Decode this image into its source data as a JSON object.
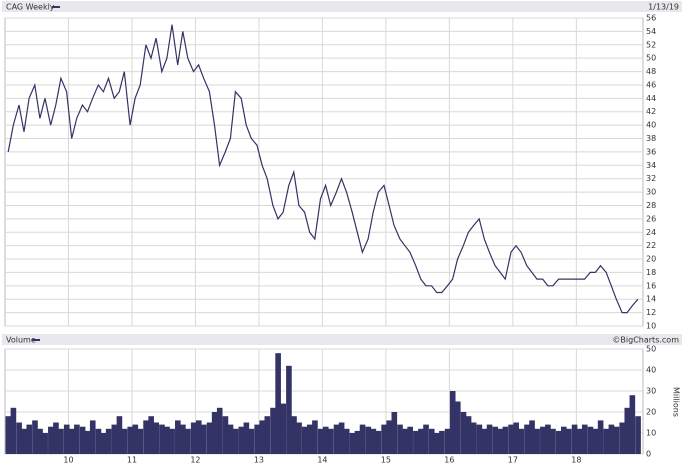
{
  "chart_data": [
    {
      "type": "line",
      "title": "CAG Weekly",
      "date": "1/13/19",
      "color": "#333366",
      "x": [
        9.05,
        9.13,
        9.22,
        9.3,
        9.38,
        9.47,
        9.55,
        9.63,
        9.72,
        9.8,
        9.88,
        9.97,
        10.05,
        10.13,
        10.22,
        10.3,
        10.38,
        10.47,
        10.55,
        10.63,
        10.72,
        10.8,
        10.88,
        10.97,
        11.05,
        11.13,
        11.22,
        11.3,
        11.38,
        11.47,
        11.55,
        11.63,
        11.72,
        11.8,
        11.88,
        11.97,
        12.05,
        12.13,
        12.22,
        12.3,
        12.38,
        12.47,
        12.55,
        12.63,
        12.72,
        12.8,
        12.88,
        12.97,
        13.05,
        13.13,
        13.22,
        13.3,
        13.38,
        13.47,
        13.55,
        13.63,
        13.72,
        13.8,
        13.88,
        13.97,
        14.05,
        14.13,
        14.22,
        14.3,
        14.38,
        14.47,
        14.55,
        14.63,
        14.72,
        14.8,
        14.88,
        14.97,
        15.05,
        15.13,
        15.22,
        15.3,
        15.38,
        15.47,
        15.55,
        15.63,
        15.72,
        15.8,
        15.88,
        15.97,
        16.05,
        16.13,
        16.22,
        16.3,
        16.38,
        16.47,
        16.55,
        16.63,
        16.72,
        16.8,
        16.88,
        16.97,
        17.05,
        17.13,
        17.22,
        17.3,
        17.38,
        17.47,
        17.55,
        17.63,
        17.72,
        17.8,
        17.88,
        17.97,
        18.05,
        18.13,
        18.22,
        18.3,
        18.38,
        18.47,
        18.55,
        18.63,
        18.72,
        18.8,
        18.88,
        18.97
      ],
      "values": [
        36,
        40,
        43,
        39,
        44,
        46,
        41,
        44,
        40,
        43,
        47,
        45,
        38,
        41,
        43,
        42,
        44,
        46,
        45,
        47,
        44,
        45,
        48,
        40,
        44,
        46,
        52,
        50,
        53,
        48,
        50,
        55,
        49,
        54,
        50,
        48,
        49,
        47,
        45,
        40,
        34,
        36,
        38,
        45,
        44,
        40,
        38,
        37,
        34,
        32,
        28,
        26,
        27,
        31,
        33,
        28,
        27,
        24,
        23,
        29,
        31,
        28,
        30,
        32,
        30,
        27,
        24,
        21,
        23,
        27,
        30,
        31,
        28,
        25,
        23,
        22,
        21,
        19,
        17,
        16,
        16,
        15,
        15,
        16,
        17,
        20,
        22,
        24,
        25,
        26,
        23,
        21,
        19,
        18,
        17,
        21,
        22,
        21,
        19,
        18,
        17,
        17,
        16,
        16,
        17,
        17,
        17,
        17,
        17,
        17,
        18,
        18,
        19,
        18,
        16,
        14,
        12,
        12,
        13,
        14
      ],
      "xlim": [
        9.0,
        19.05
      ],
      "xticks": [
        10,
        11,
        12,
        13,
        14,
        15,
        16,
        17,
        18
      ],
      "ylim": [
        10,
        56
      ],
      "yticks": [
        10,
        12,
        14,
        16,
        18,
        20,
        22,
        24,
        26,
        28,
        30,
        32,
        34,
        36,
        38,
        40,
        42,
        44,
        46,
        48,
        50,
        52,
        54,
        56
      ],
      "grid": true
    },
    {
      "type": "bar",
      "title": "Volume",
      "source": "©BigCharts.com",
      "y_label": "Millions",
      "color": "#333366",
      "x": [
        9.05,
        9.13,
        9.22,
        9.3,
        9.38,
        9.47,
        9.55,
        9.63,
        9.72,
        9.8,
        9.88,
        9.97,
        10.05,
        10.13,
        10.22,
        10.3,
        10.38,
        10.47,
        10.55,
        10.63,
        10.72,
        10.8,
        10.88,
        10.97,
        11.05,
        11.13,
        11.22,
        11.3,
        11.38,
        11.47,
        11.55,
        11.63,
        11.72,
        11.8,
        11.88,
        11.97,
        12.05,
        12.13,
        12.22,
        12.3,
        12.38,
        12.47,
        12.55,
        12.63,
        12.72,
        12.8,
        12.88,
        12.97,
        13.05,
        13.13,
        13.22,
        13.3,
        13.38,
        13.47,
        13.55,
        13.63,
        13.72,
        13.8,
        13.88,
        13.97,
        14.05,
        14.13,
        14.22,
        14.3,
        14.38,
        14.47,
        14.55,
        14.63,
        14.72,
        14.8,
        14.88,
        14.97,
        15.05,
        15.13,
        15.22,
        15.3,
        15.38,
        15.47,
        15.55,
        15.63,
        15.72,
        15.8,
        15.88,
        15.97,
        16.05,
        16.13,
        16.22,
        16.3,
        16.38,
        16.47,
        16.55,
        16.63,
        16.72,
        16.8,
        16.88,
        16.97,
        17.05,
        17.13,
        17.22,
        17.3,
        17.38,
        17.47,
        17.55,
        17.63,
        17.72,
        17.8,
        17.88,
        17.97,
        18.05,
        18.13,
        18.22,
        18.3,
        18.38,
        18.47,
        18.55,
        18.63,
        18.72,
        18.8,
        18.88,
        18.97
      ],
      "values": [
        18,
        22,
        15,
        12,
        14,
        16,
        12,
        10,
        13,
        15,
        12,
        14,
        12,
        14,
        13,
        11,
        16,
        12,
        10,
        12,
        14,
        18,
        12,
        13,
        14,
        12,
        16,
        18,
        15,
        14,
        13,
        12,
        16,
        14,
        12,
        15,
        16,
        14,
        15,
        20,
        22,
        18,
        14,
        12,
        13,
        15,
        12,
        14,
        16,
        18,
        22,
        48,
        24,
        42,
        18,
        15,
        13,
        14,
        16,
        12,
        13,
        12,
        14,
        15,
        12,
        10,
        11,
        14,
        13,
        12,
        11,
        14,
        16,
        20,
        14,
        12,
        13,
        11,
        12,
        14,
        12,
        10,
        11,
        12,
        30,
        25,
        20,
        18,
        15,
        14,
        12,
        14,
        13,
        12,
        13,
        14,
        15,
        12,
        14,
        16,
        12,
        13,
        14,
        12,
        11,
        13,
        12,
        14,
        12,
        14,
        13,
        12,
        16,
        12,
        14,
        13,
        15,
        22,
        28,
        18
      ],
      "xlim": [
        9.0,
        19.05
      ],
      "xticks": [
        10,
        11,
        12,
        13,
        14,
        15,
        16,
        17,
        18
      ],
      "ylim": [
        0,
        50
      ],
      "yticks": [
        0,
        10,
        20,
        30,
        40,
        50
      ],
      "grid": true
    }
  ]
}
